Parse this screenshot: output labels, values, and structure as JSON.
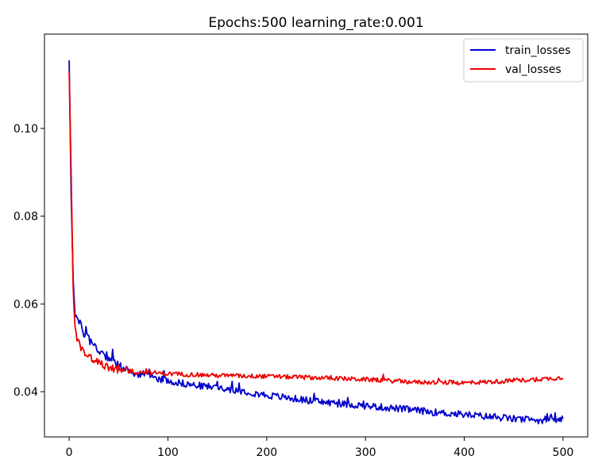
{
  "chart_data": {
    "type": "line",
    "title": "Epochs:500  learning_rate:0.001",
    "xlabel": "",
    "ylabel": "",
    "xlim": [
      -25,
      525
    ],
    "ylim": [
      0.0297,
      0.1215
    ],
    "x_ticks": [
      0,
      100,
      200,
      300,
      400,
      500
    ],
    "y_ticks": [
      0.04,
      0.06,
      0.08,
      0.1
    ],
    "grid": false,
    "legend": {
      "position": "top-right"
    },
    "series": [
      {
        "name": "train_losses",
        "color": "#0000cc",
        "points": [
          [
            0,
            0.1155
          ],
          [
            2,
            0.085
          ],
          [
            4,
            0.066
          ],
          [
            6,
            0.058
          ],
          [
            10,
            0.0555
          ],
          [
            15,
            0.0535
          ],
          [
            20,
            0.052
          ],
          [
            25,
            0.0505
          ],
          [
            30,
            0.0495
          ],
          [
            40,
            0.048
          ],
          [
            50,
            0.046
          ],
          [
            60,
            0.0445
          ],
          [
            75,
            0.0438
          ],
          [
            100,
            0.0425
          ],
          [
            125,
            0.0415
          ],
          [
            150,
            0.041
          ],
          [
            175,
            0.0402
          ],
          [
            200,
            0.0392
          ],
          [
            225,
            0.0385
          ],
          [
            250,
            0.0378
          ],
          [
            275,
            0.0372
          ],
          [
            300,
            0.0368
          ],
          [
            325,
            0.0363
          ],
          [
            350,
            0.0358
          ],
          [
            375,
            0.0352
          ],
          [
            400,
            0.0348
          ],
          [
            425,
            0.0343
          ],
          [
            450,
            0.0338
          ],
          [
            475,
            0.0335
          ],
          [
            500,
            0.0337
          ]
        ],
        "noise": 0.0008
      },
      {
        "name": "val_losses",
        "color": "#ee0000",
        "points": [
          [
            0,
            0.113
          ],
          [
            2,
            0.09
          ],
          [
            4,
            0.064
          ],
          [
            6,
            0.054
          ],
          [
            10,
            0.0505
          ],
          [
            15,
            0.0492
          ],
          [
            20,
            0.048
          ],
          [
            30,
            0.0465
          ],
          [
            40,
            0.0455
          ],
          [
            50,
            0.045
          ],
          [
            70,
            0.0445
          ],
          [
            100,
            0.0441
          ],
          [
            150,
            0.0437
          ],
          [
            200,
            0.0435
          ],
          [
            250,
            0.0432
          ],
          [
            300,
            0.0428
          ],
          [
            350,
            0.0422
          ],
          [
            400,
            0.042
          ],
          [
            450,
            0.0425
          ],
          [
            500,
            0.0432
          ]
        ],
        "noise": 0.0005
      }
    ]
  }
}
